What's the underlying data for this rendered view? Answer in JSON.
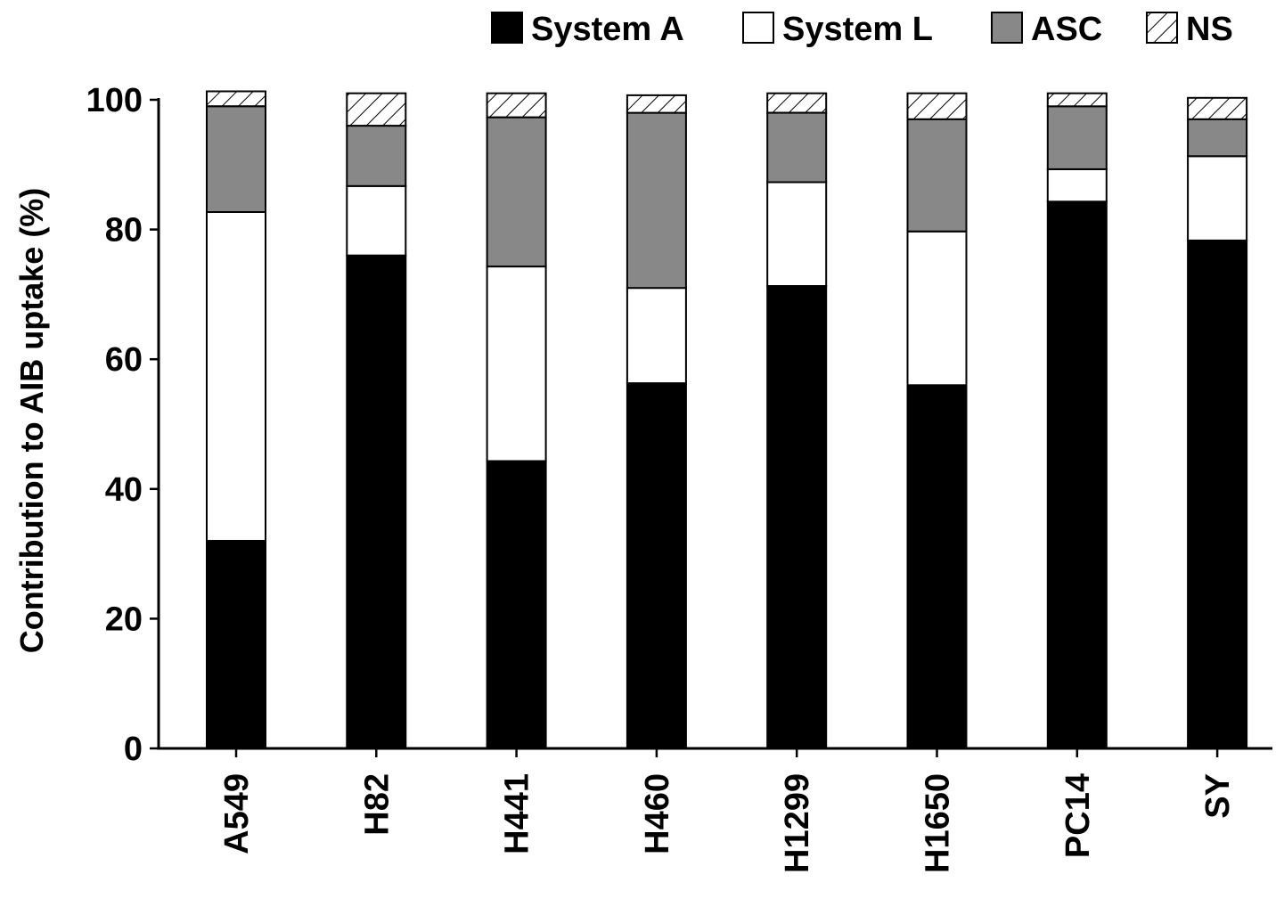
{
  "chart_data": {
    "type": "bar",
    "stacked": true,
    "ylabel": "Contribution to AIB uptake (%)",
    "xlabel": "",
    "ylim": [
      0,
      100
    ],
    "yticks": [
      0,
      20,
      40,
      60,
      80,
      100
    ],
    "categories": [
      "A549",
      "H82",
      "H441",
      "H460",
      "H1299",
      "H1650",
      "PC14",
      "SY"
    ],
    "series": [
      {
        "name": "System A",
        "fill": "#000000",
        "pattern": "solid",
        "values": [
          32,
          76,
          44.3,
          56.3,
          71.3,
          56,
          84.3,
          78.3
        ]
      },
      {
        "name": "System L",
        "fill": "#ffffff",
        "pattern": "solid",
        "values": [
          50.7,
          10.7,
          30,
          14.7,
          16,
          23.7,
          5,
          13
        ]
      },
      {
        "name": "ASC",
        "fill": "#888888",
        "pattern": "solid",
        "values": [
          16.3,
          9.3,
          23,
          27,
          10.7,
          17.3,
          9.7,
          5.7
        ]
      },
      {
        "name": "NS",
        "fill": "#ffffff",
        "pattern": "hatch",
        "values": [
          2.3,
          5,
          3.7,
          2.7,
          3,
          4,
          2,
          3.3
        ]
      }
    ],
    "legend_position": "top-right",
    "grid": false
  }
}
